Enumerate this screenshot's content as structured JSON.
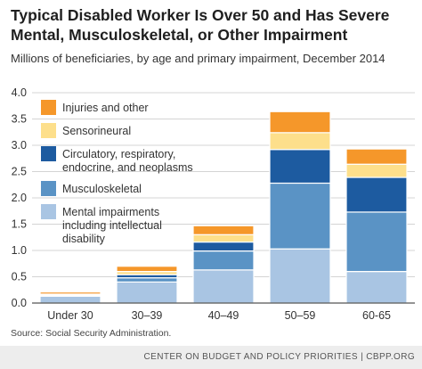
{
  "title_line1": "Typical Disabled Worker Is Over 50 and Has Severe",
  "title_line2": "Mental, Musculoskeletal, or Other Impairment",
  "subtitle": "Millions of beneficiaries, by age and primary impairment, December 2014",
  "source": "Source: Social Security Administration.",
  "footer": "CENTER ON BUDGET AND POLICY PRIORITIES | CBPP.ORG",
  "chart_data": {
    "type": "bar",
    "stacked": true,
    "categories": [
      "Under 30",
      "30–39",
      "40–49",
      "50–59",
      "60-65"
    ],
    "ylim": [
      0,
      4.0
    ],
    "yticks": [
      "0.0",
      "0.5",
      "1.0",
      "1.5",
      "2.0",
      "2.5",
      "3.0",
      "3.5",
      "4.0"
    ],
    "xlabel": "",
    "ylabel": "",
    "grid": true,
    "legend_position": "top-left",
    "series": [
      {
        "name_lines": [
          "Mental impairments",
          "including intellectual",
          "disability"
        ],
        "color": "#a9c5e3",
        "values": [
          0.13,
          0.4,
          0.63,
          1.03,
          0.6
        ]
      },
      {
        "name_lines": [
          "Musculoskeletal"
        ],
        "color": "#5a93c5",
        "values": [
          0.01,
          0.08,
          0.36,
          1.25,
          1.13
        ]
      },
      {
        "name_lines": [
          "Circulatory, respiratory,",
          "endocrine, and neoplasms"
        ],
        "color": "#1d5ba0",
        "values": [
          0.01,
          0.06,
          0.17,
          0.64,
          0.66
        ]
      },
      {
        "name_lines": [
          "Sensorineural"
        ],
        "color": "#fddf8b",
        "values": [
          0.02,
          0.06,
          0.14,
          0.32,
          0.25
        ]
      },
      {
        "name_lines": [
          "Injuries and other"
        ],
        "color": "#f5972a",
        "values": [
          0.04,
          0.1,
          0.17,
          0.4,
          0.29
        ]
      }
    ]
  }
}
